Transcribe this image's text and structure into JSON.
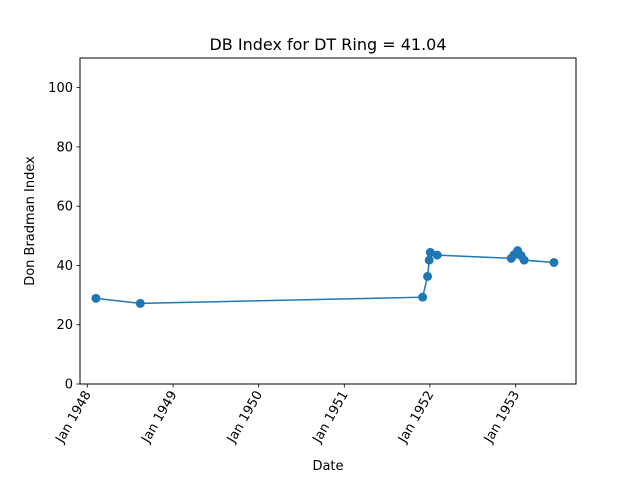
{
  "chart_data": {
    "type": "line",
    "title": "DB Index for DT Ring = 41.04",
    "xlabel": "Date",
    "ylabel": "Don Bradman Index",
    "xlim": [
      "1947-12-01",
      "1953-09-15"
    ],
    "ylim": [
      0,
      110
    ],
    "x_ticks": [
      {
        "date": "1948-01-01",
        "label": "Jan 1948"
      },
      {
        "date": "1949-01-01",
        "label": "Jan 1949"
      },
      {
        "date": "1950-01-01",
        "label": "Jan 1950"
      },
      {
        "date": "1951-01-01",
        "label": "Jan 1951"
      },
      {
        "date": "1952-01-01",
        "label": "Jan 1952"
      },
      {
        "date": "1953-01-01",
        "label": "Jan 1953"
      }
    ],
    "y_ticks": [
      0,
      20,
      40,
      60,
      80,
      100
    ],
    "grid": false,
    "series": [
      {
        "color": "#1f77b4",
        "marker": "circle",
        "x": [
          "1948-02-07",
          "1948-08-14",
          "1951-12-01",
          "1951-12-22",
          "1951-12-29",
          "1952-01-03",
          "1952-02-01",
          "1952-12-13",
          "1952-12-25",
          "1953-01-09",
          "1953-01-24",
          "1953-02-06",
          "1953-06-13"
        ],
        "values": [
          28.9,
          27.2,
          29.3,
          36.3,
          41.8,
          44.4,
          43.5,
          42.4,
          43.6,
          45.0,
          43.3,
          41.8,
          41.0
        ]
      }
    ]
  }
}
